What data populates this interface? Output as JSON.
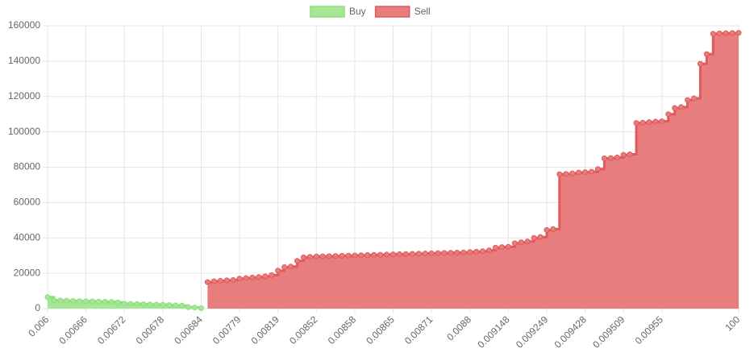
{
  "chart_data": {
    "type": "stepped-area",
    "categories": [
      "0.006",
      null,
      null,
      null,
      null,
      null,
      "0.00666",
      null,
      null,
      null,
      null,
      null,
      "0.00672",
      null,
      null,
      null,
      null,
      null,
      "0.00678",
      null,
      null,
      null,
      null,
      null,
      "0.00684",
      null,
      null,
      null,
      null,
      null,
      "0.00779",
      null,
      null,
      null,
      null,
      null,
      "0.00819",
      null,
      null,
      null,
      null,
      null,
      "0.00852",
      null,
      null,
      null,
      null,
      null,
      "0.00858",
      null,
      null,
      null,
      null,
      null,
      "0.00865",
      null,
      null,
      null,
      null,
      null,
      "0.00871",
      null,
      null,
      null,
      null,
      null,
      "0.0088",
      null,
      null,
      null,
      null,
      null,
      "0.009148",
      null,
      null,
      null,
      null,
      null,
      "0.009249",
      null,
      null,
      null,
      null,
      null,
      "0.009428",
      null,
      null,
      null,
      null,
      null,
      "0.009509",
      null,
      null,
      null,
      null,
      null,
      "0.00955",
      null,
      null,
      null,
      null,
      null,
      null,
      null,
      null,
      null,
      null,
      null,
      "100"
    ],
    "series": [
      {
        "name": "Buy",
        "color": "#a5e795",
        "border": "#8fdc7c",
        "values": [
          6500,
          4800,
          4600,
          4500,
          4400,
          4300,
          4200,
          4100,
          4000,
          3900,
          3800,
          3500,
          2800,
          2700,
          2600,
          2500,
          2400,
          2300,
          2200,
          2000,
          1900,
          1700,
          800,
          600,
          300,
          null,
          null,
          null,
          null,
          null,
          null,
          null,
          null,
          null,
          null,
          null,
          null,
          null,
          null,
          null,
          null,
          null,
          null,
          null,
          null,
          null,
          null,
          null,
          null,
          null,
          null,
          null,
          null,
          null,
          null,
          null,
          null,
          null,
          null,
          null,
          null,
          null,
          null,
          null,
          null,
          null,
          null,
          null,
          null,
          null,
          null,
          null,
          null,
          null,
          null,
          null,
          null,
          null,
          null,
          null,
          null,
          null,
          null,
          null,
          null,
          null,
          null,
          null,
          null,
          null,
          null,
          null,
          null,
          null,
          null,
          null,
          null,
          null,
          null,
          null,
          null,
          null,
          null,
          null,
          null,
          null,
          null,
          null,
          null
        ]
      },
      {
        "name": "Sell",
        "color": "#e77d7d",
        "border": "#e05a5a",
        "values": [
          null,
          null,
          null,
          null,
          null,
          null,
          null,
          null,
          null,
          null,
          null,
          null,
          null,
          null,
          null,
          null,
          null,
          null,
          null,
          null,
          null,
          null,
          null,
          null,
          null,
          15000,
          15500,
          15800,
          16000,
          16200,
          17000,
          17300,
          17600,
          17900,
          18300,
          19000,
          21500,
          23500,
          23800,
          27000,
          29000,
          29300,
          29500,
          29600,
          29700,
          29800,
          29900,
          30000,
          30100,
          30200,
          30300,
          30400,
          30500,
          30600,
          30700,
          30800,
          30900,
          31000,
          31100,
          31200,
          31300,
          31400,
          31500,
          31600,
          31700,
          31800,
          32000,
          32200,
          32500,
          33000,
          34500,
          34800,
          35000,
          37000,
          37500,
          38000,
          40000,
          40500,
          44500,
          45000,
          76000,
          76200,
          76500,
          77000,
          77200,
          77500,
          79000,
          85000,
          85200,
          85500,
          87000,
          87300,
          105000,
          105200,
          105500,
          105800,
          106000,
          110000,
          113500,
          114000,
          118000,
          119000,
          138500,
          144000,
          155500,
          155700,
          155800,
          155900,
          156000
        ]
      }
    ],
    "ylim": [
      0,
      160000
    ],
    "yticks": [
      0,
      20000,
      40000,
      60000,
      80000,
      100000,
      120000,
      140000,
      160000
    ],
    "grid": true,
    "legend": "top"
  }
}
